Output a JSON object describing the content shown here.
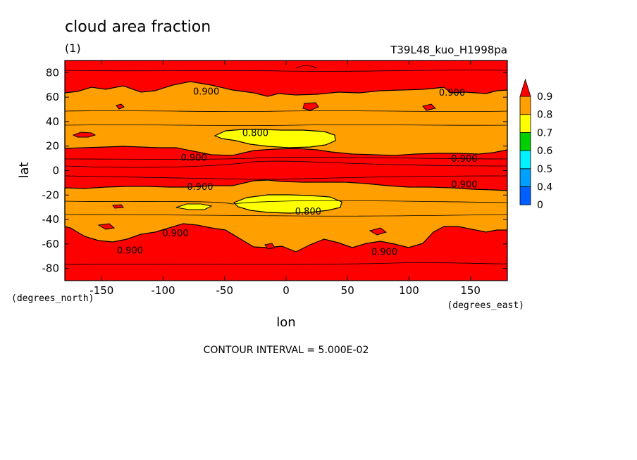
{
  "chart_data": {
    "type": "heatmap",
    "title": "cloud area fraction",
    "subtitle": "(1)",
    "run_label": "T39L48_kuo_H1998pa",
    "xlabel": "lon",
    "ylabel": "lat",
    "x_units": "(degrees_east)",
    "y_units": "(degrees_north)",
    "xlim": [
      -180,
      180
    ],
    "ylim": [
      -90,
      90
    ],
    "x_ticks": [
      -150,
      -100,
      -50,
      0,
      50,
      100,
      150
    ],
    "y_ticks": [
      -80,
      -60,
      -40,
      -20,
      0,
      20,
      40,
      60,
      80
    ],
    "contour_interval_text": "CONTOUR INTERVAL = 5.000E-02",
    "contour_labels": [
      {
        "text": "0.900",
        "lon": -65,
        "lat": 65
      },
      {
        "text": "0.900",
        "lon": 135,
        "lat": 64
      },
      {
        "text": "0.800",
        "lon": -25,
        "lat": 31
      },
      {
        "text": "0.900",
        "lon": -75,
        "lat": 11
      },
      {
        "text": "0.900",
        "lon": 145,
        "lat": 10
      },
      {
        "text": "0.900",
        "lon": -70,
        "lat": -13
      },
      {
        "text": "0.900",
        "lon": 145,
        "lat": -11
      },
      {
        "text": "0.800",
        "lon": 18,
        "lat": -33
      },
      {
        "text": "0.900",
        "lon": -90,
        "lat": -51
      },
      {
        "text": "0.900",
        "lon": -127,
        "lat": -65
      },
      {
        "text": "0.900",
        "lon": 80,
        "lat": -66
      }
    ],
    "colorbar": {
      "levels": [
        "0",
        "0.4",
        "0.5",
        "0.6",
        "0.7",
        "0.8",
        "0.9"
      ],
      "colors": [
        "#0060ff",
        "#00a0ff",
        "#00f0ff",
        "#00d000",
        "#ffff00",
        "#ffa000",
        "#ff0000"
      ]
    },
    "fill_colors": {
      "above_0.9": "#ff0000",
      "0.8_to_0.9": "#ffa000",
      "0.7_to_0.8": "#ffff00"
    }
  }
}
